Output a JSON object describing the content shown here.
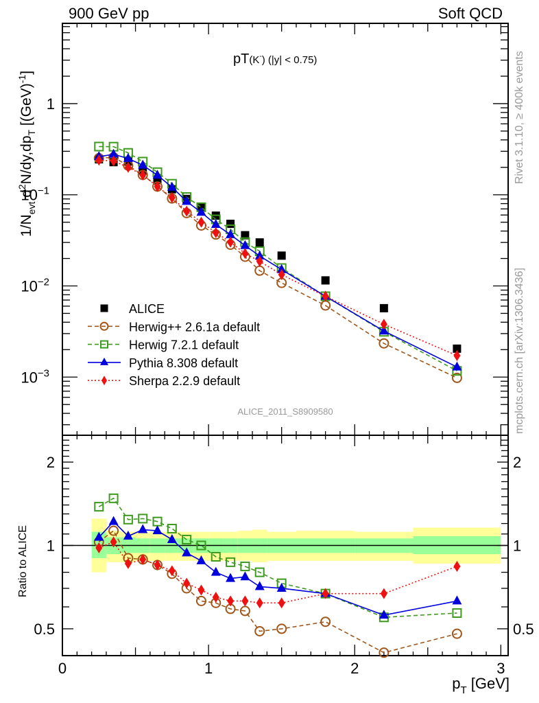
{
  "header": {
    "left": "900 GeV pp",
    "right": "Soft QCD"
  },
  "side_labels": {
    "rivet": "Rivet 3.1.10, ≥ 400k events",
    "mcplots": "mcplots.cern.ch [arXiv:1306.3436]"
  },
  "watermark": "ALICE_2011_S8909580",
  "chart_data": [
    {
      "type": "scatter",
      "panel": "main",
      "title": "pT(K⁻) (|y| < 0.75)",
      "title_parts": {
        "main": "pT",
        "particle": "(K",
        "sup": "-",
        "rest": ") (|y| < 0.75)"
      },
      "ylabel": "1/N_evt d²N/dy,dp_T [(GeV)⁻¹]",
      "ylabel_parts": {
        "a": "1/N",
        "a_sub": "evt",
        "b": " d",
        "b_sup": "2",
        "c": "N/dy,dp",
        "c_sub": "T",
        "d": " [(GeV)",
        "d_sup": "-1",
        "e": "]"
      },
      "yscale": "log",
      "ylim": [
        0.00023,
        7.6
      ],
      "xlim": [
        0,
        3.05
      ],
      "yticks": [
        {
          "v": 1,
          "label": "1"
        },
        {
          "v": 0.1,
          "label": "10",
          "exp": "−1"
        },
        {
          "v": 0.01,
          "label": "10",
          "exp": "−2"
        },
        {
          "v": 0.001,
          "label": "10",
          "exp": "−3"
        }
      ],
      "legend_position": "bottom-left",
      "x": [
        0.25,
        0.35,
        0.45,
        0.55,
        0.65,
        0.75,
        0.85,
        0.95,
        1.05,
        1.15,
        1.25,
        1.35,
        1.5,
        1.8,
        2.2,
        2.7
      ],
      "series": [
        {
          "name": "ALICE",
          "style": "data",
          "marker": "square-filled",
          "color": "#000000",
          "values": [
            0.245,
            0.228,
            0.232,
            0.185,
            0.145,
            0.115,
            0.09,
            0.073,
            0.059,
            0.048,
            0.036,
            0.03,
            0.0215,
            0.0115,
            0.0057,
            0.00205
          ]
        },
        {
          "name": "Herwig++ 2.6.1a default",
          "style": "dashed",
          "marker": "circle-open",
          "color": "#a0561a",
          "values": [
            0.252,
            0.258,
            0.209,
            0.165,
            0.123,
            0.091,
            0.063,
            0.046,
            0.0366,
            0.0283,
            0.0209,
            0.0147,
            0.0108,
            0.0061,
            0.00234,
            0.00098
          ]
        },
        {
          "name": "Herwig 7.2.1 default",
          "style": "dashed",
          "marker": "square-open",
          "color": "#3d9a1f",
          "values": [
            0.338,
            0.337,
            0.288,
            0.231,
            0.177,
            0.132,
            0.0945,
            0.073,
            0.0537,
            0.0418,
            0.0302,
            0.024,
            0.0157,
            0.0077,
            0.00314,
            0.00117
          ]
        },
        {
          "name": "Pythia 8.308 default",
          "style": "solid",
          "marker": "triangle-filled",
          "color": "#0000dd",
          "values": [
            0.262,
            0.278,
            0.25,
            0.211,
            0.164,
            0.121,
            0.0846,
            0.0642,
            0.0472,
            0.0365,
            0.0277,
            0.0213,
            0.0151,
            0.0077,
            0.0032,
            0.00129
          ]
        },
        {
          "name": "Sherpa 2.2.9 default",
          "style": "dotted",
          "marker": "diamond-filled",
          "color": "#ee1111",
          "values": [
            0.24,
            0.235,
            0.2,
            0.165,
            0.123,
            0.093,
            0.066,
            0.05,
            0.0384,
            0.0302,
            0.0227,
            0.0186,
            0.0133,
            0.0077,
            0.0038,
            0.00172
          ]
        }
      ]
    },
    {
      "type": "scatter",
      "panel": "ratio",
      "ylabel": "Ratio to ALICE",
      "xlabel": "p_T [GeV]",
      "xlabel_parts": {
        "a": "p",
        "sub": "T",
        "b": " [GeV]"
      },
      "yscale": "log",
      "ylim": [
        0.4,
        2.5
      ],
      "xlim": [
        0,
        3.05
      ],
      "xticks": [
        {
          "v": 0,
          "label": "0"
        },
        {
          "v": 1,
          "label": "1"
        },
        {
          "v": 2,
          "label": "2"
        },
        {
          "v": 3,
          "label": "3"
        }
      ],
      "yticks": [
        {
          "v": 2,
          "label": "2"
        },
        {
          "v": 1,
          "label": "1"
        },
        {
          "v": 0.5,
          "label": "0.5"
        }
      ],
      "x": [
        0.25,
        0.35,
        0.45,
        0.55,
        0.65,
        0.75,
        0.85,
        0.95,
        1.05,
        1.15,
        1.25,
        1.35,
        1.5,
        1.8,
        2.2,
        2.7
      ],
      "bands": {
        "bins": [
          [
            0.2,
            0.3
          ],
          [
            0.3,
            0.4
          ],
          [
            0.4,
            0.5
          ],
          [
            0.5,
            0.6
          ],
          [
            0.6,
            0.7
          ],
          [
            0.7,
            0.8
          ],
          [
            0.8,
            0.9
          ],
          [
            0.9,
            1.0
          ],
          [
            1.0,
            1.1
          ],
          [
            1.1,
            1.2
          ],
          [
            1.2,
            1.3
          ],
          [
            1.3,
            1.4
          ],
          [
            1.4,
            1.6
          ],
          [
            1.6,
            2.0
          ],
          [
            2.0,
            2.4
          ],
          [
            2.4,
            3.0
          ]
        ],
        "stat": [
          [
            0.9,
            1.12
          ],
          [
            0.93,
            1.07
          ],
          [
            0.94,
            1.07
          ],
          [
            0.94,
            1.06
          ],
          [
            0.94,
            1.06
          ],
          [
            0.94,
            1.06
          ],
          [
            0.94,
            1.06
          ],
          [
            0.94,
            1.06
          ],
          [
            0.94,
            1.06
          ],
          [
            0.94,
            1.06
          ],
          [
            0.94,
            1.06
          ],
          [
            0.94,
            1.06
          ],
          [
            0.94,
            1.06
          ],
          [
            0.94,
            1.06
          ],
          [
            0.94,
            1.06
          ],
          [
            0.93,
            1.08
          ]
        ],
        "syst": [
          [
            0.8,
            1.25
          ],
          [
            0.87,
            1.13
          ],
          [
            0.87,
            1.12
          ],
          [
            0.88,
            1.12
          ],
          [
            0.88,
            1.12
          ],
          [
            0.88,
            1.12
          ],
          [
            0.88,
            1.12
          ],
          [
            0.88,
            1.12
          ],
          [
            0.88,
            1.12
          ],
          [
            0.88,
            1.12
          ],
          [
            0.88,
            1.13
          ],
          [
            0.87,
            1.14
          ],
          [
            0.88,
            1.12
          ],
          [
            0.88,
            1.13
          ],
          [
            0.88,
            1.12
          ],
          [
            0.86,
            1.16
          ]
        ],
        "stat_color": "#99ff99",
        "syst_color": "#ffff99"
      },
      "series": [
        {
          "name": "Herwig++ 2.6.1a default",
          "style": "dashed",
          "marker": "circle-open",
          "color": "#a0561a",
          "values": [
            1.03,
            1.13,
            0.9,
            0.89,
            0.85,
            0.79,
            0.7,
            0.63,
            0.62,
            0.59,
            0.58,
            0.49,
            0.5,
            0.53,
            0.41,
            0.48
          ]
        },
        {
          "name": "Herwig 7.2.1 default",
          "style": "dashed",
          "marker": "square-open",
          "color": "#3d9a1f",
          "values": [
            1.38,
            1.48,
            1.24,
            1.25,
            1.22,
            1.15,
            1.05,
            1.0,
            0.91,
            0.87,
            0.84,
            0.8,
            0.73,
            0.67,
            0.55,
            0.57
          ]
        },
        {
          "name": "Pythia 8.308 default",
          "style": "solid",
          "marker": "triangle-filled",
          "color": "#0000dd",
          "values": [
            1.07,
            1.22,
            1.08,
            1.14,
            1.13,
            1.05,
            0.94,
            0.88,
            0.8,
            0.76,
            0.77,
            0.71,
            0.7,
            0.67,
            0.56,
            0.63
          ]
        },
        {
          "name": "Sherpa 2.2.9 default",
          "style": "dotted",
          "marker": "diamond-filled",
          "color": "#ee1111",
          "values": [
            0.98,
            1.03,
            0.86,
            0.89,
            0.85,
            0.81,
            0.73,
            0.69,
            0.65,
            0.63,
            0.63,
            0.62,
            0.62,
            0.67,
            0.67,
            0.84
          ]
        }
      ]
    }
  ]
}
